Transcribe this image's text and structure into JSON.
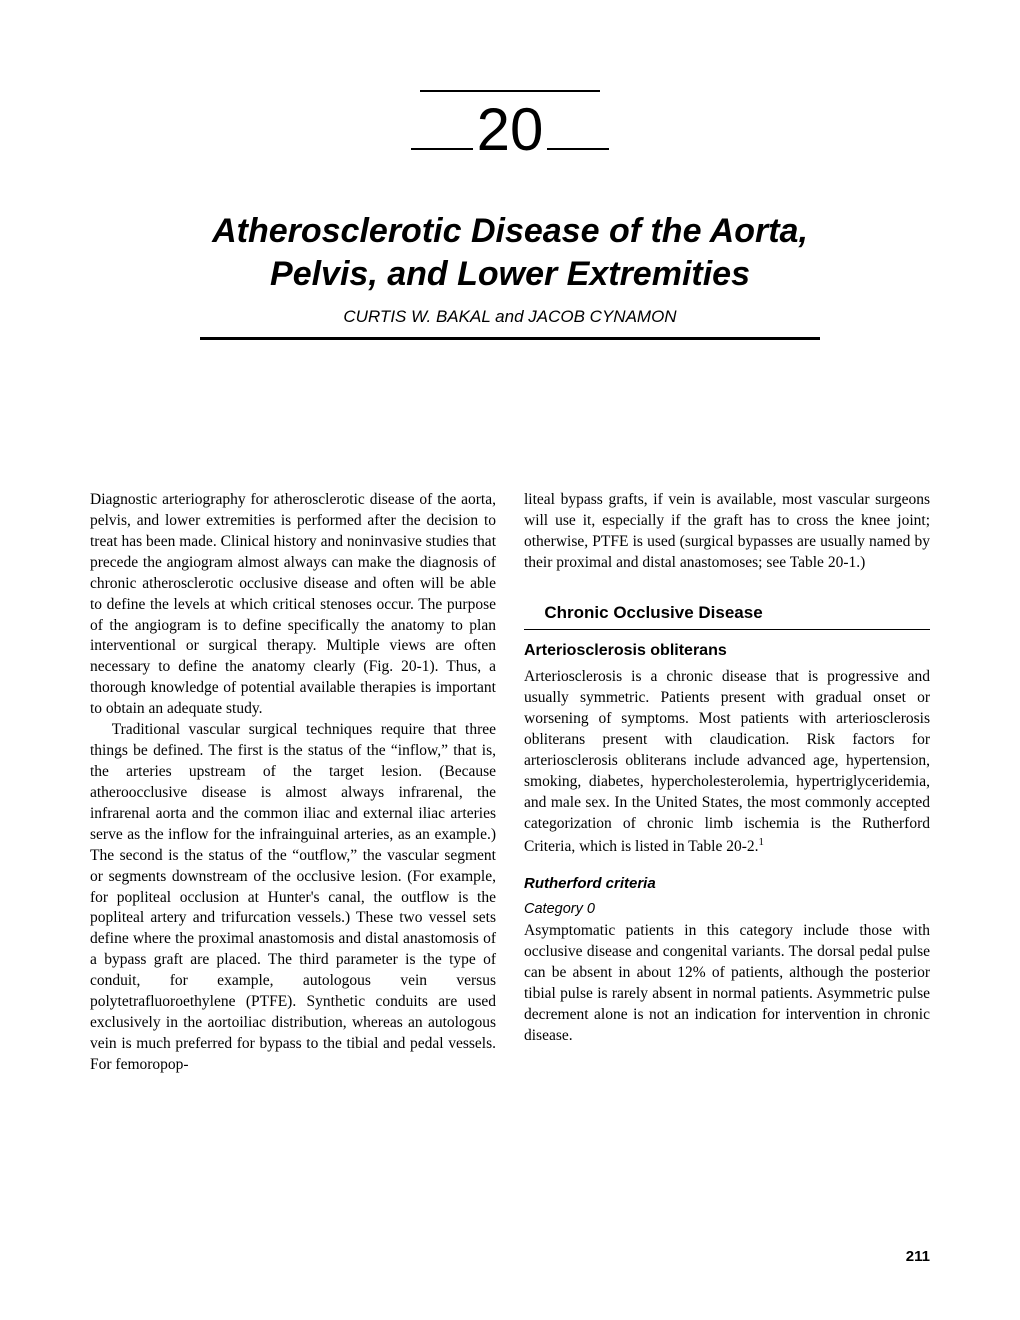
{
  "chapter_number": "20",
  "title_line1": "Atherosclerotic Disease of the Aorta,",
  "title_line2": "Pelvis, and Lower Extremities",
  "authors": "CURTIS W. BAKAL and JACOB CYNAMON",
  "page_number": "211",
  "body": {
    "p1": "Diagnostic arteriography for atherosclerotic disease of the aorta, pelvis, and lower extremities is performed after the decision to treat has been made. Clinical history and noninvasive studies that precede the angiogram almost always can make the diagnosis of chronic atherosclerotic occlusive disease and often will be able to define the levels at which critical stenoses occur. The purpose of the angiogram is to define specifically the anatomy to plan interventional or surgical therapy. Multiple views are often necessary to define the anatomy clearly (Fig. 20-1). Thus, a thorough knowledge of potential available therapies is important to obtain an adequate study.",
    "p2": "Traditional vascular surgical techniques require that three things be defined. The first is the status of the “inflow,” that is, the arteries upstream of the target lesion. (Because atheroocclusive disease is almost always infrarenal, the infrarenal aorta and the common iliac and external iliac arteries serve as the inflow for the infrainguinal arteries, as an example.) The second is the status of the “outflow,” the vascular segment or segments downstream of the occlusive lesion. (For example, for popliteal occlusion at Hunter's canal, the outflow is the popliteal artery and trifurcation vessels.) These two vessel sets define where the proximal anastomosis and distal anastomosis of a bypass graft are placed. The third parameter is the type of conduit, for example, autologous vein versus polytetrafluoroethylene (PTFE). Synthetic conduits are used exclusively in the aortoiliac distribution, whereas an autologous vein is much preferred for bypass to the tibial and pedal vessels. For femoropop-",
    "p3": "liteal bypass grafts, if vein is available, most vascular surgeons will use it, especially if the graft has to cross the knee joint; otherwise, PTFE is used (surgical bypasses are usually named by their proximal and distal anastomoses; see Table 20-1.)",
    "section1": "Chronic Occlusive Disease",
    "subsection1": "Arteriosclerosis obliterans",
    "p4a": "Arteriosclerosis is a chronic disease that is progressive and usually symmetric. Patients present with gradual onset or worsening of symptoms. Most patients with arteriosclerosis obliterans present with claudication. Risk factors for arteriosclerosis obliterans include advanced age, hypertension, smoking, diabetes, hypercholesterolemia, hypertriglyceridemia, and male sex. In the United States, the most commonly accepted categorization of chronic limb ischemia is the Rutherford Criteria, which is listed in Table 20-2.",
    "p4sup": "1",
    "subsub1": "Rutherford criteria",
    "cat0": "Category 0",
    "p5": "Asymptomatic patients in this category include those with occlusive disease and congenital variants. The dorsal pedal pulse can be absent in about 12% of patients, although the posterior tibial pulse is rarely absent in normal patients. Asymmetric pulse decrement alone is not an indication for intervention in chronic disease."
  }
}
